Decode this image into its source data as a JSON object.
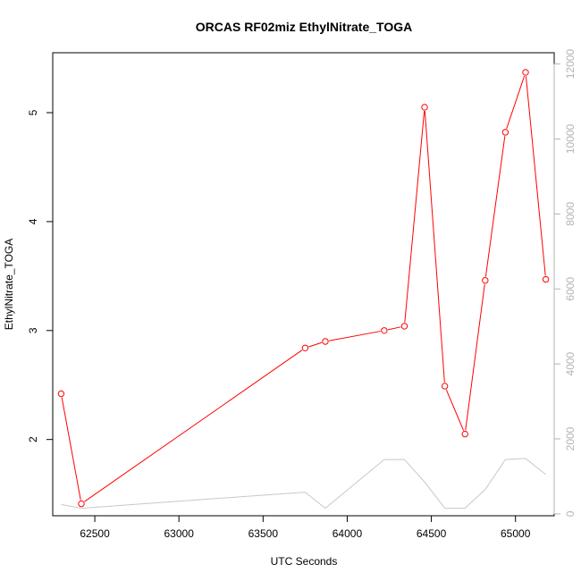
{
  "chart_data": {
    "type": "line",
    "title": "ORCAS RF02miz EthylNitrate_TOGA",
    "xlabel": "UTC Seconds",
    "ylabel": "EthylNitrate_TOGA",
    "y2label": "",
    "xlim": [
      62250,
      65230
    ],
    "ylim": [
      1.3,
      5.55
    ],
    "y2lim": [
      -50,
      12300
    ],
    "x_ticks": [
      62500,
      63000,
      63500,
      64000,
      64500,
      65000
    ],
    "y_ticks": [
      2,
      3,
      4,
      5
    ],
    "y2_ticks": [
      0,
      2000,
      4000,
      6000,
      8000,
      10000,
      12000
    ],
    "grid": false,
    "colors": {
      "primary": "#ff0000",
      "secondary": "#c8c8c8",
      "axis": "#000000",
      "right_axis": "#b4b4b4"
    },
    "series": [
      {
        "axis": "left",
        "color": "#ff0000",
        "marker": "circle-open",
        "x": [
          62300,
          62420,
          63750,
          63870,
          64220,
          64340,
          64460,
          64580,
          64700,
          64820,
          64940,
          65060,
          65180
        ],
        "y": [
          2.42,
          1.41,
          2.84,
          2.9,
          3.0,
          3.04,
          5.05,
          2.49,
          2.05,
          3.46,
          4.82,
          5.37,
          3.47
        ]
      },
      {
        "axis": "right",
        "color": "#c8c8c8",
        "marker": "none",
        "x": [
          62300,
          62420,
          63750,
          63870,
          64220,
          64340,
          64460,
          64580,
          64700,
          64820,
          64940,
          65060,
          65180
        ],
        "y": [
          250,
          150,
          580,
          150,
          1450,
          1450,
          850,
          150,
          150,
          650,
          1450,
          1480,
          1050
        ]
      }
    ]
  }
}
